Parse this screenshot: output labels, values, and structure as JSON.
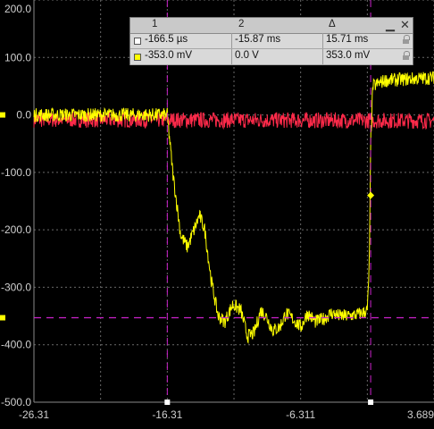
{
  "y_axis": {
    "labels": [
      "100.0",
      "0.0",
      "-100.0",
      "-200.0",
      "-300.0",
      "-400.0",
      "-500.0"
    ],
    "top_partial_label": "200.0",
    "values": [
      100,
      0,
      -100,
      -200,
      -300,
      -400,
      -500
    ]
  },
  "x_axis": {
    "labels": [
      "-26.31",
      "-16.31",
      "-6.311",
      "3.689"
    ],
    "values": [
      -26.31,
      -16.31,
      -6.311,
      3.689
    ]
  },
  "measurements": {
    "headers": {
      "col1": "1",
      "col2": "2",
      "col3": "Δ"
    },
    "minimize": "▁",
    "close": "✕",
    "rows": [
      {
        "swatch_color": "#ffffff",
        "c1": "-166.5 µs",
        "c2": "-15.87 ms",
        "c3": "15.71 ms"
      },
      {
        "swatch_color": "#ffff00",
        "c1": "-353.0 mV",
        "c2": "0.0 V",
        "c3": "353.0 mV"
      }
    ]
  },
  "colors": {
    "background": "#000000",
    "grid": "#6a6a6a",
    "trace_yellow": "#ffff00",
    "trace_red": "#ff2a4a",
    "cursor_magenta": "#cc22cc",
    "ground_marker": "#ffff00"
  },
  "chart_data": {
    "type": "line",
    "xlim": [
      -26.31,
      3.689
    ],
    "ylim": [
      -500,
      200
    ],
    "cursors": {
      "vertical": [
        -16.31,
        -1.06
      ],
      "horizontal": [
        -353
      ]
    },
    "series": [
      {
        "color": "#ffff00",
        "x": [
          -26.31,
          -16.6,
          -16.31,
          -15.9,
          -15.3,
          -14.8,
          -14.3,
          -13.9,
          -13.5,
          -13.0,
          -12.5,
          -12.0,
          -11.4,
          -10.8,
          -10.3,
          -9.8,
          -9.3,
          -8.9,
          -8.4,
          -7.9,
          -7.4,
          -6.9,
          -6.3,
          -5.8,
          -5.2,
          -4.6,
          -4.0,
          -3.4,
          -2.8,
          -2.2,
          -1.7,
          -1.3,
          -1.15,
          -1.06,
          -0.9,
          0.0,
          3.689
        ],
        "y": [
          0,
          0,
          0,
          -100,
          -210,
          -230,
          -200,
          -175,
          -200,
          -290,
          -350,
          -360,
          -330,
          -340,
          -385,
          -380,
          -340,
          -350,
          -375,
          -370,
          -345,
          -355,
          -370,
          -345,
          -360,
          -355,
          -345,
          -350,
          -350,
          -348,
          -345,
          -340,
          -250,
          -50,
          50,
          60,
          65
        ]
      },
      {
        "color": "#ff2a4a",
        "x": [
          -26.31,
          3.689
        ],
        "y": [
          -8,
          -10
        ]
      }
    ]
  }
}
